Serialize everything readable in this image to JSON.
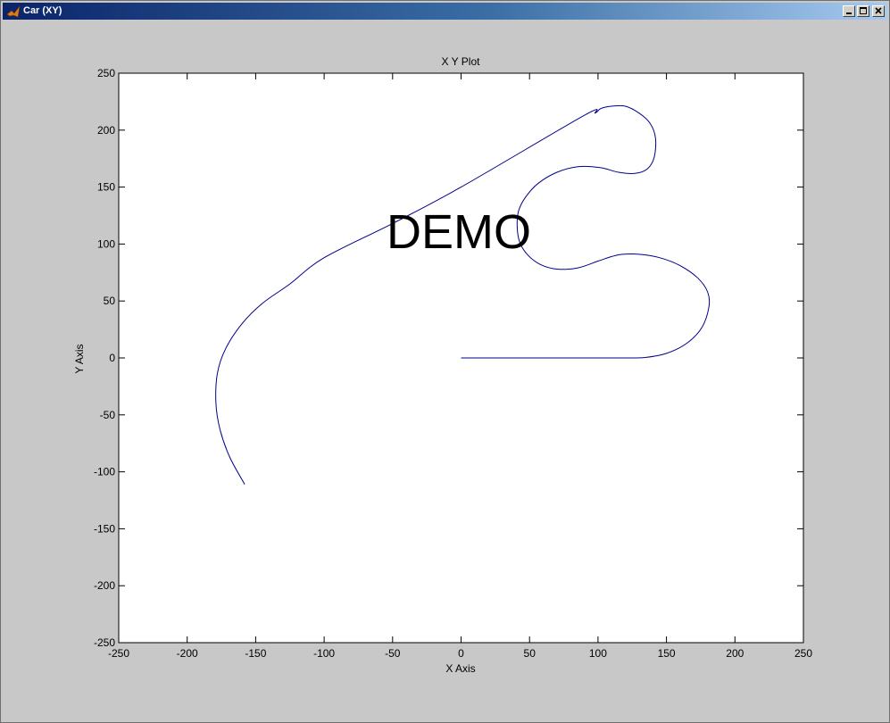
{
  "window": {
    "title": "Car (XY)",
    "icon": "matlab-icon",
    "buttons": [
      "minimize-icon",
      "maximize-icon",
      "close-icon"
    ]
  },
  "colors": {
    "background": "#c8c8c8",
    "axes_background": "#ffffff",
    "line": "#00008b",
    "titlebar_start": "#0a246a",
    "titlebar_end": "#a6caf0"
  },
  "watermark": "DEMO",
  "chart_data": {
    "type": "line",
    "title": "X Y Plot",
    "xlabel": "X Axis",
    "ylabel": "Y Axis",
    "xlim": [
      -250,
      250
    ],
    "ylim": [
      -250,
      250
    ],
    "xticks": [
      -250,
      -200,
      -150,
      -100,
      -50,
      0,
      50,
      100,
      150,
      200,
      250
    ],
    "yticks": [
      -250,
      -200,
      -150,
      -100,
      -50,
      0,
      50,
      100,
      150,
      200,
      250
    ],
    "grid": false,
    "series": [
      {
        "color": "#00008b",
        "x": [
          0,
          60,
          120,
          135,
          150,
          165,
          176,
          181,
          180,
          173,
          160,
          145,
          130,
          118,
          110,
          100,
          85,
          70,
          58,
          49,
          43,
          41,
          42,
          47,
          56,
          70,
          86,
          102,
          115,
          127,
          136,
          141,
          142,
          138,
          130,
          120,
          110,
          102,
          98,
          90,
          0,
          -50,
          -100,
          -125,
          -145,
          -160,
          -172,
          -178,
          -179,
          -176,
          -169,
          -158
        ],
        "y": [
          0,
          0,
          0,
          0.5,
          4,
          13,
          27,
          45,
          58,
          70,
          81,
          88,
          91,
          91,
          89,
          85,
          79,
          78,
          82,
          90,
          101,
          115,
          129,
          141,
          153,
          163,
          168,
          167,
          163,
          162,
          166,
          176,
          193,
          206,
          215,
          221,
          221,
          219,
          215,
          213,
          150,
          118,
          88,
          65,
          48,
          30,
          8,
          -14,
          -40,
          -63,
          -87,
          -111
        ]
      }
    ]
  }
}
